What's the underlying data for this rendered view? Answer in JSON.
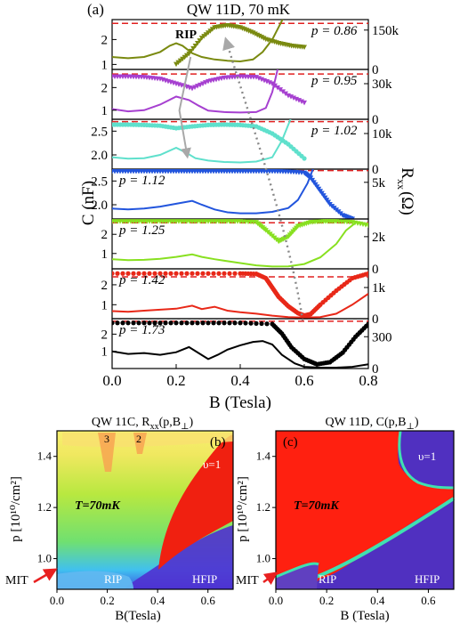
{
  "colors": {
    "olive": "#7a8a10",
    "purple": "#a640d0",
    "cyan": "#5fe0cc",
    "blue": "#2255dd",
    "green": "#88e020",
    "red": "#e82818",
    "black": "#000000",
    "dash_red": "#e02020",
    "arrow_gray": "#a8a8a8",
    "dot_gray": "#888888",
    "mit_arrow": "#e82020"
  },
  "chart_data": [
    {
      "type": "line",
      "panel_label": "(a)",
      "title": "QW 11D, 70 mK",
      "xlabel": "B (Tesla)",
      "ylabel_left": "C (nF)",
      "ylabel_right": "R_xx (Ω)",
      "ylabel_right_main": "R",
      "ylabel_right_sub": "xx",
      "ylabel_right_unit": "(Ω)",
      "xlim": [
        0.0,
        0.8
      ],
      "xticks": [
        "0.0",
        "0.2",
        "0.4",
        "0.6",
        "0.8"
      ],
      "annotations": {
        "rip": "RIP",
        "nu": "υ=1"
      },
      "subpanels": [
        {
          "p_label": "p = 0.86",
          "p_side": "right",
          "color_key": "olive",
          "c_ylim": [
            0.8,
            2.8
          ],
          "c_ticks": [
            1,
            2
          ],
          "c_tick_labels": [
            "1",
            "2"
          ],
          "r_ylim": [
            0,
            190000
          ],
          "r_ticks": [
            0,
            150000
          ],
          "r_tick_labels": [
            "0",
            "150k"
          ],
          "dash_c": 2.65,
          "c_x": [
            0,
            0.05,
            0.1,
            0.15,
            0.18,
            0.2,
            0.22,
            0.25,
            0.28,
            0.32,
            0.36,
            0.4,
            0.44,
            0.47,
            0.5,
            0.52,
            0.54
          ],
          "c_y": [
            1.3,
            1.25,
            1.3,
            1.5,
            1.75,
            1.85,
            1.75,
            1.45,
            1.3,
            1.2,
            1.15,
            1.12,
            1.2,
            1.5,
            2.0,
            2.5,
            3.0
          ],
          "r_x": [
            0.2,
            0.24,
            0.28,
            0.32,
            0.36,
            0.4,
            0.44,
            0.48,
            0.52,
            0.56,
            0.6
          ],
          "r_y": [
            20000,
            60000,
            120000,
            160000,
            168000,
            160000,
            140000,
            115000,
            100000,
            90000,
            85000
          ]
        },
        {
          "p_label": "p = 0.95",
          "p_side": "right",
          "color_key": "purple",
          "c_ylim": [
            0.6,
            2.8
          ],
          "c_ticks": [
            1,
            2
          ],
          "c_tick_labels": [
            "1",
            "2"
          ],
          "r_ylim": [
            0,
            42000
          ],
          "r_ticks": [
            0,
            30000
          ],
          "r_tick_labels": [
            "0",
            "30k"
          ],
          "dash_c": 2.6,
          "c_x": [
            0,
            0.05,
            0.1,
            0.15,
            0.2,
            0.24,
            0.27,
            0.3,
            0.35,
            0.4,
            0.45,
            0.48,
            0.5,
            0.52
          ],
          "c_y": [
            1.05,
            0.95,
            1.0,
            1.25,
            1.6,
            1.45,
            1.2,
            0.98,
            0.92,
            0.9,
            0.92,
            1.1,
            1.8,
            3.0
          ],
          "r_x": [
            0,
            0.05,
            0.1,
            0.15,
            0.2,
            0.25,
            0.3,
            0.35,
            0.4,
            0.45,
            0.5,
            0.55,
            0.6
          ],
          "r_y": [
            36000,
            36000,
            35500,
            34000,
            30000,
            26000,
            32000,
            35000,
            36000,
            35500,
            30000,
            20000,
            14000
          ]
        },
        {
          "p_label": "p = 1.02",
          "p_side": "right",
          "color_key": "cyan",
          "c_ylim": [
            1.7,
            2.75
          ],
          "c_ticks": [
            2.0,
            2.5
          ],
          "c_tick_labels": [
            "2.0",
            "2.5"
          ],
          "r_ylim": [
            0,
            14000
          ],
          "r_ticks": [
            0,
            10000
          ],
          "r_tick_labels": [
            "0",
            "10k"
          ],
          "dash_c": 2.7,
          "c_x": [
            0,
            0.05,
            0.1,
            0.15,
            0.2,
            0.23,
            0.26,
            0.3,
            0.35,
            0.4,
            0.45,
            0.5,
            0.53,
            0.56
          ],
          "c_y": [
            1.95,
            1.92,
            1.93,
            2.0,
            2.15,
            2.05,
            1.93,
            1.88,
            1.85,
            1.84,
            1.86,
            1.95,
            2.3,
            2.8
          ],
          "r_x": [
            0,
            0.05,
            0.1,
            0.15,
            0.2,
            0.25,
            0.3,
            0.35,
            0.4,
            0.45,
            0.5,
            0.55,
            0.6
          ],
          "r_y": [
            12500,
            12500,
            12400,
            12200,
            11500,
            12000,
            12400,
            12500,
            12400,
            12000,
            10000,
            7000,
            3000
          ]
        },
        {
          "p_label": "p = 1.12",
          "p_side": "left",
          "color_key": "blue",
          "c_ylim": [
            1.7,
            2.75
          ],
          "c_ticks": [
            2.0,
            2.5
          ],
          "c_tick_labels": [
            "2.0",
            "2.5"
          ],
          "r_ylim": [
            0,
            6800
          ],
          "r_ticks": [
            5000
          ],
          "r_tick_labels": [
            "5k"
          ],
          "dash_c": 2.72,
          "c_x": [
            0,
            0.05,
            0.1,
            0.15,
            0.2,
            0.25,
            0.28,
            0.32,
            0.36,
            0.4,
            0.45,
            0.5,
            0.55,
            0.58,
            0.61,
            0.63
          ],
          "c_y": [
            1.92,
            1.9,
            1.92,
            1.96,
            2.02,
            2.08,
            2.0,
            1.9,
            1.84,
            1.82,
            1.82,
            1.85,
            1.93,
            2.1,
            2.45,
            2.8
          ],
          "r_x": [
            0,
            0.05,
            0.1,
            0.15,
            0.2,
            0.25,
            0.3,
            0.35,
            0.4,
            0.45,
            0.5,
            0.55,
            0.6,
            0.62,
            0.65,
            0.68,
            0.72,
            0.75
          ],
          "r_y": [
            6500,
            6500,
            6500,
            6500,
            6500,
            6500,
            6500,
            6500,
            6500,
            6500,
            6500,
            6450,
            6300,
            5600,
            3800,
            2000,
            500,
            0
          ]
        },
        {
          "p_label": "p = 1.25",
          "p_side": "left",
          "color_key": "green",
          "c_ylim": [
            0.2,
            2.8
          ],
          "c_ticks": [
            1,
            2
          ],
          "c_tick_labels": [
            "1",
            "2"
          ],
          "r_ylim": [
            0,
            3100
          ],
          "r_ticks": [
            0,
            2000
          ],
          "r_tick_labels": [
            "0",
            "2k"
          ],
          "dash_c": 2.6,
          "c_x": [
            0,
            0.05,
            0.1,
            0.15,
            0.2,
            0.25,
            0.28,
            0.32,
            0.36,
            0.4,
            0.45,
            0.5,
            0.55,
            0.6,
            0.65,
            0.7,
            0.73,
            0.76
          ],
          "c_y": [
            0.7,
            0.65,
            0.67,
            0.72,
            0.82,
            0.95,
            0.82,
            0.7,
            0.6,
            0.5,
            0.38,
            0.32,
            0.33,
            0.45,
            0.8,
            1.5,
            2.2,
            2.6
          ],
          "r_x": [
            0,
            0.05,
            0.1,
            0.15,
            0.2,
            0.25,
            0.3,
            0.35,
            0.4,
            0.45,
            0.48,
            0.52,
            0.55,
            0.58,
            0.62,
            0.66,
            0.7,
            0.75,
            0.8
          ],
          "r_y": [
            2950,
            2950,
            2950,
            2950,
            2950,
            2950,
            2950,
            2950,
            2950,
            2900,
            2400,
            1700,
            2000,
            2650,
            2900,
            2950,
            2950,
            2900,
            2700
          ]
        },
        {
          "p_label": "p = 1.42",
          "p_side": "left",
          "color_key": "red",
          "c_ylim": [
            0.3,
            2.8
          ],
          "c_ticks": [
            1,
            2
          ],
          "c_tick_labels": [
            "1",
            "2"
          ],
          "r_ylim": [
            0,
            1600
          ],
          "r_ticks": [
            0,
            1000
          ],
          "r_tick_labels": [
            "0",
            "1k"
          ],
          "dash_c": 2.4,
          "c_x": [
            0,
            0.05,
            0.1,
            0.15,
            0.2,
            0.25,
            0.28,
            0.32,
            0.36,
            0.4,
            0.45,
            0.5,
            0.55,
            0.6,
            0.65,
            0.7,
            0.75,
            0.8
          ],
          "c_y": [
            0.68,
            0.65,
            0.7,
            0.75,
            0.8,
            0.95,
            0.78,
            0.9,
            0.7,
            0.62,
            0.55,
            0.45,
            0.38,
            0.36,
            0.38,
            0.55,
            1.0,
            1.55
          ],
          "r_x": [
            0,
            0.1,
            0.2,
            0.3,
            0.4,
            0.45,
            0.48,
            0.5,
            0.52,
            0.55,
            0.58,
            0.6,
            0.62,
            0.65,
            0.7,
            0.75,
            0.8
          ],
          "r_y": [
            1450,
            1450,
            1450,
            1450,
            1450,
            1440,
            1300,
            1000,
            700,
            400,
            180,
            100,
            150,
            450,
            900,
            1300,
            1450
          ]
        },
        {
          "p_label": "p = 1.73",
          "p_side": "left",
          "color_key": "black",
          "c_ylim": [
            0.0,
            2.9
          ],
          "c_ticks": [
            1,
            2
          ],
          "c_tick_labels": [
            "1",
            "2"
          ],
          "r_ylim": [
            0,
            470
          ],
          "r_ticks": [
            0,
            300
          ],
          "r_tick_labels": [
            "0",
            "300"
          ],
          "dash_c": 2.75,
          "c_x": [
            0,
            0.05,
            0.1,
            0.15,
            0.2,
            0.24,
            0.27,
            0.3,
            0.33,
            0.36,
            0.4,
            0.44,
            0.47,
            0.5,
            0.53,
            0.57,
            0.6,
            0.65,
            0.7,
            0.75,
            0.8
          ],
          "c_y": [
            1.0,
            0.85,
            0.9,
            0.8,
            0.95,
            1.25,
            0.9,
            0.55,
            0.8,
            1.1,
            1.35,
            1.55,
            1.6,
            1.4,
            0.8,
            0.3,
            0.1,
            0.05,
            0.05,
            0.1,
            0.25
          ],
          "r_x": [
            0,
            0.1,
            0.2,
            0.3,
            0.4,
            0.5,
            0.53,
            0.56,
            0.6,
            0.64,
            0.68,
            0.72,
            0.76,
            0.8
          ],
          "r_y": [
            430,
            430,
            430,
            430,
            430,
            420,
            330,
            200,
            90,
            40,
            60,
            150,
            300,
            420
          ]
        }
      ]
    },
    {
      "type": "heatmap",
      "panel_label": "(b)",
      "title_main": "QW 11C, R",
      "title_sub": "xx",
      "title_args": "(p,B",
      "title_args_sub": "⊥",
      "title_close": ")",
      "xlabel": "B(Tesla)",
      "ylabel": "p [10¹⁰/cm²]",
      "xlim": [
        0.0,
        0.7
      ],
      "ylim": [
        0.88,
        1.5
      ],
      "xticks": [
        "0.0",
        "0.2",
        "0.4",
        "0.6"
      ],
      "yticks": [
        "1.0",
        "1.2",
        "1.4"
      ],
      "temp_label": "T=70mK",
      "regions": {
        "rip": "RIP",
        "hfip": "HFIP",
        "nu1": "υ=1",
        "n3": "3",
        "n2": "2"
      },
      "mit_label": "MIT"
    },
    {
      "type": "heatmap",
      "panel_label": "(c)",
      "title_main": "QW 11D, C(p,B",
      "title_sub": "⊥",
      "title_close": ")",
      "xlabel": "B (Tesla)",
      "ylabel": "p [10¹⁰/cm²]",
      "xlim": [
        0.0,
        0.7
      ],
      "ylim": [
        0.88,
        1.5
      ],
      "xticks": [
        "0.0",
        "0.2",
        "0.4",
        "0.6"
      ],
      "yticks": [
        "1.0",
        "1.2",
        "1.4"
      ],
      "temp_label": "T=70mK",
      "regions": {
        "rip": "RIP",
        "hfip": "HFIP",
        "nu1": "υ=1"
      },
      "mit_label": "MIT"
    }
  ]
}
